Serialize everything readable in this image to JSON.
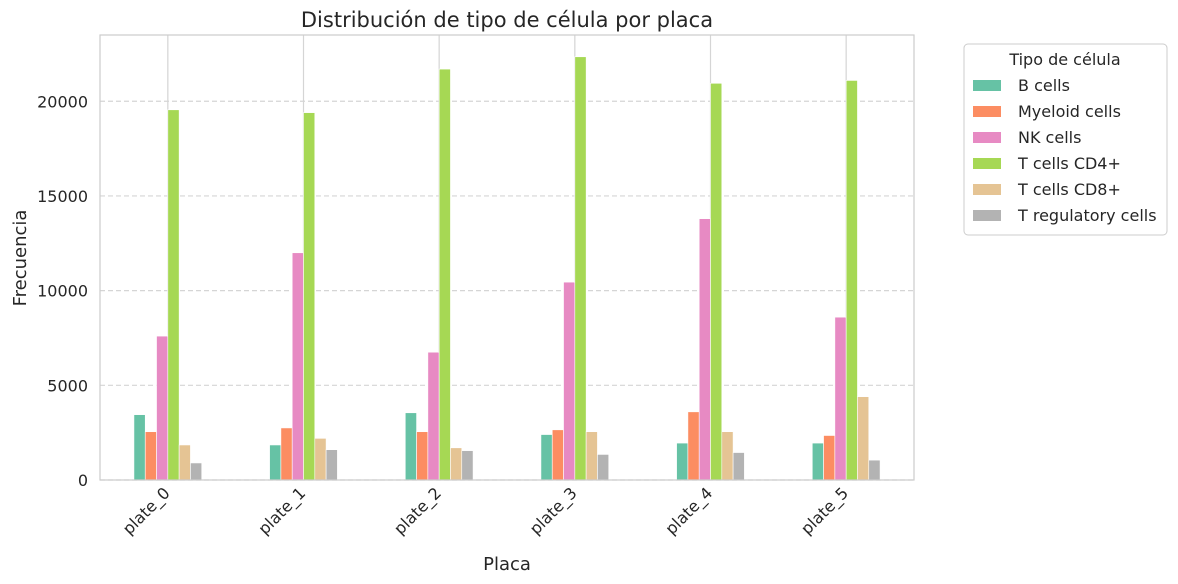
{
  "chart_data": {
    "type": "bar",
    "title": "Distribución de tipo de célula por placa",
    "xlabel": "Placa",
    "ylabel": "Frecuencia",
    "categories": [
      "plate_0",
      "plate_1",
      "plate_2",
      "plate_3",
      "plate_4",
      "plate_5"
    ],
    "ylim": [
      0,
      23500
    ],
    "yticks": [
      0,
      5000,
      10000,
      15000,
      20000
    ],
    "grid": true,
    "legend": {
      "title": "Tipo de célula",
      "placement": "outside-right"
    },
    "series": [
      {
        "name": "B cells",
        "color": "#66c2a5",
        "values": [
          3450,
          1850,
          3550,
          2400,
          1950,
          1950
        ]
      },
      {
        "name": "Myeloid cells",
        "color": "#fc8d62",
        "values": [
          2550,
          2750,
          2550,
          2650,
          3600,
          2350
        ]
      },
      {
        "name": "NK cells",
        "color": "#e78ac3",
        "values": [
          7600,
          12000,
          6750,
          10450,
          13800,
          8600
        ]
      },
      {
        "name": "T cells CD4+",
        "color": "#a6d854",
        "values": [
          19550,
          19400,
          21700,
          22350,
          20950,
          21100
        ]
      },
      {
        "name": "T cells CD8+",
        "color": "#e5c494",
        "values": [
          1850,
          2200,
          1700,
          2550,
          2550,
          4400
        ]
      },
      {
        "name": "T regulatory cells",
        "color": "#b3b3b3",
        "values": [
          900,
          1600,
          1550,
          1350,
          1450,
          1050
        ]
      }
    ]
  }
}
